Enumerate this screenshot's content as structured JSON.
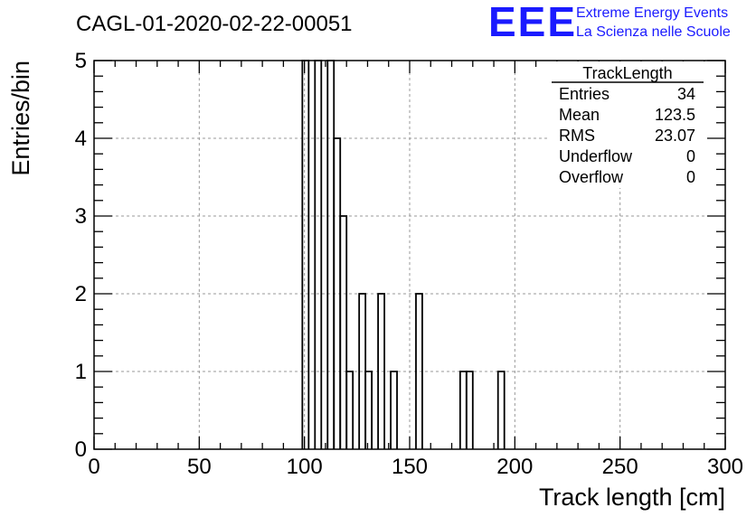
{
  "title": "CAGL-01-2020-02-22-00051",
  "logo": {
    "mark": "EEE",
    "line1": "Extreme Energy Events",
    "line2": "La Scienza nelle Scuole",
    "color": "#1a1aff"
  },
  "stats": {
    "name": "TrackLength",
    "rows": [
      {
        "label": "Entries",
        "value": "34"
      },
      {
        "label": "Mean",
        "value": "123.5"
      },
      {
        "label": "RMS",
        "value": "23.07"
      },
      {
        "label": "Underflow",
        "value": "0"
      },
      {
        "label": "Overflow",
        "value": "0"
      }
    ]
  },
  "chart_data": {
    "type": "bar",
    "title": "CAGL-01-2020-02-22-00051",
    "xlabel": "Track length [cm]",
    "ylabel": "Entries/bin",
    "xlim": [
      0,
      300
    ],
    "ylim": [
      0,
      5
    ],
    "xticks": [
      0,
      50,
      100,
      150,
      200,
      250,
      300
    ],
    "yticks": [
      0,
      1,
      2,
      3,
      4,
      5
    ],
    "grid": true,
    "bin_width": 3,
    "bins": [
      {
        "x": 99,
        "count": 5
      },
      {
        "x": 105,
        "count": 5
      },
      {
        "x": 111,
        "count": 5
      },
      {
        "x": 114,
        "count": 4
      },
      {
        "x": 117,
        "count": 3
      },
      {
        "x": 120,
        "count": 1
      },
      {
        "x": 126,
        "count": 2
      },
      {
        "x": 129,
        "count": 1
      },
      {
        "x": 135,
        "count": 2
      },
      {
        "x": 141,
        "count": 1
      },
      {
        "x": 153,
        "count": 2
      },
      {
        "x": 174,
        "count": 1
      },
      {
        "x": 177,
        "count": 1
      },
      {
        "x": 192,
        "count": 1
      }
    ]
  }
}
